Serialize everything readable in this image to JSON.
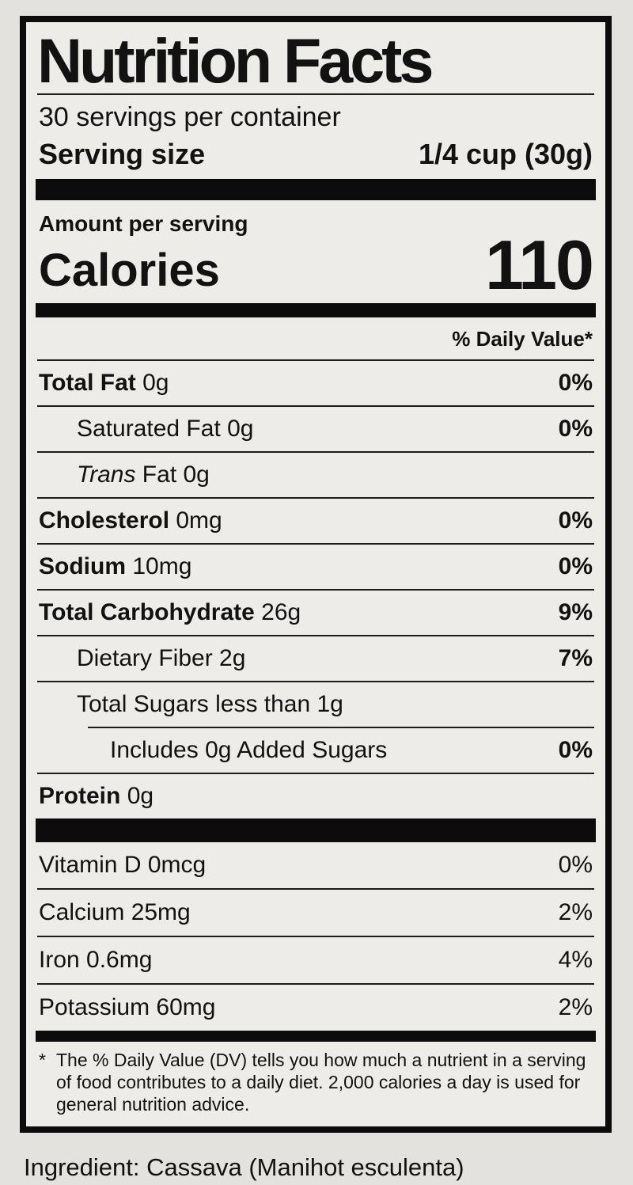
{
  "label": {
    "title": "Nutrition Facts",
    "servings_per_container": "30 servings per container",
    "serving_size_label": "Serving size",
    "serving_size_value": "1/4 cup (30g)",
    "amount_per_serving": "Amount per serving",
    "calories_label": "Calories",
    "calories_value": "110",
    "daily_value_header": "% Daily Value*",
    "nutrients": [
      {
        "bold": "Total Fat",
        "regular": " 0g",
        "dv": "0%"
      },
      {
        "regular": "Saturated Fat 0g",
        "dv": "0%"
      },
      {
        "italic": "Trans",
        "regular": " Fat 0g"
      },
      {
        "bold": "Cholesterol",
        "regular": " 0mg",
        "dv": "0%"
      },
      {
        "bold": "Sodium",
        "regular": " 10mg",
        "dv": "0%"
      },
      {
        "bold": "Total Carbohydrate",
        "regular": " 26g",
        "dv": "9%"
      },
      {
        "regular": "Dietary Fiber 2g",
        "dv": "7%"
      },
      {
        "regular": "Total Sugars less than 1g"
      },
      {
        "regular": "Includes 0g Added Sugars",
        "dv": "0%"
      },
      {
        "bold": "Protein",
        "regular": " 0g"
      }
    ],
    "micronutrients": [
      {
        "name": "Vitamin D 0mcg",
        "dv": "0%"
      },
      {
        "name": "Calcium 25mg",
        "dv": "2%"
      },
      {
        "name": "Iron 0.6mg",
        "dv": "4%"
      },
      {
        "name": "Potassium 60mg",
        "dv": "2%"
      }
    ],
    "footnote_marker": "*",
    "footnote": "The % Daily Value (DV) tells you how much a nutrient in a serving of food contributes to a daily diet. 2,000 calories a day is used for general nutrition advice."
  },
  "ingredient_line": "Ingredient: Cassava (Manihot esculenta)",
  "colors": {
    "page_background": "#e4e2de",
    "label_background": "#edece8",
    "ink": "#0c0c0c"
  }
}
